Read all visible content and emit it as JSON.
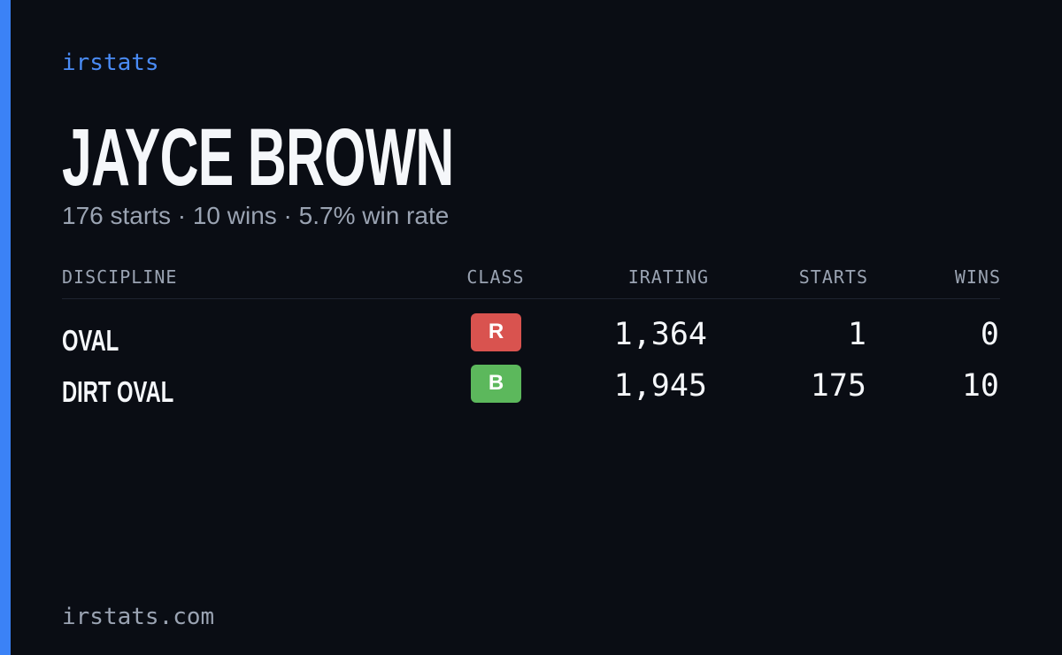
{
  "brand": "irstats",
  "profile": {
    "name": "JAYCE BROWN",
    "summary": "176 starts · 10 wins · 5.7% win rate"
  },
  "table": {
    "headers": [
      "DISCIPLINE",
      "CLASS",
      "IRATING",
      "STARTS",
      "WINS"
    ],
    "rows": [
      [
        "OVAL",
        "R",
        "1,364",
        "1",
        "0"
      ],
      [
        "DIRT OVAL",
        "B",
        "1,945",
        "175",
        "10"
      ]
    ]
  },
  "footer": "irstats.com"
}
